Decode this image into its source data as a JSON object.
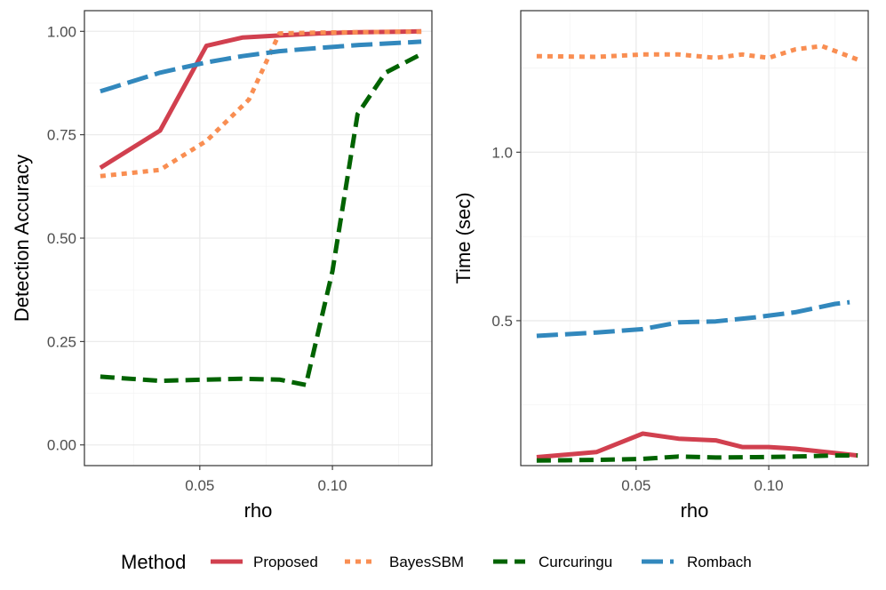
{
  "legend": {
    "title": "Method",
    "entries": [
      {
        "name": "Proposed",
        "color": "#d1404f",
        "dash": "solid"
      },
      {
        "name": "BayesSBM",
        "color": "#f98e52",
        "dash": "dotted"
      },
      {
        "name": "Curcuringu",
        "color": "#006300",
        "dash": "dashed"
      },
      {
        "name": "Rombach",
        "color": "#3288bd",
        "dash": "longdash"
      }
    ]
  },
  "chart_data": [
    {
      "type": "line",
      "xlabel": "rho",
      "ylabel": "Detection Accuracy",
      "xlim": [
        0.0065,
        0.1375
      ],
      "ylim": [
        -0.05,
        1.05
      ],
      "xticks": [
        0.05,
        0.1
      ],
      "xtick_labels": [
        "0.05",
        "0.10"
      ],
      "yticks": [
        0.0,
        0.25,
        0.5,
        0.75,
        1.0
      ],
      "ytick_labels": [
        "0.00",
        "0.25",
        "0.50",
        "0.75",
        "1.00"
      ],
      "series": [
        {
          "name": "Proposed",
          "x": [
            0.0125,
            0.035,
            0.0525,
            0.066,
            0.08,
            0.095,
            0.11,
            0.125,
            0.1335
          ],
          "y": [
            0.67,
            0.76,
            0.965,
            0.985,
            0.99,
            0.995,
            0.998,
            0.999,
            1.0
          ]
        },
        {
          "name": "BayesSBM",
          "x": [
            0.0125,
            0.035,
            0.0525,
            0.0685,
            0.08,
            0.095,
            0.11,
            0.125,
            0.1335
          ],
          "y": [
            0.65,
            0.665,
            0.735,
            0.835,
            0.995,
            0.997,
            0.998,
            0.999,
            0.999
          ]
        },
        {
          "name": "Curcuringu",
          "x": [
            0.0125,
            0.035,
            0.0525,
            0.066,
            0.08,
            0.09,
            0.1,
            0.1095,
            0.12,
            0.1335
          ],
          "y": [
            0.165,
            0.155,
            0.158,
            0.16,
            0.158,
            0.145,
            0.42,
            0.8,
            0.9,
            0.945
          ]
        },
        {
          "name": "Rombach",
          "x": [
            0.0125,
            0.035,
            0.0525,
            0.066,
            0.08,
            0.095,
            0.11,
            0.125,
            0.1335
          ],
          "y": [
            0.855,
            0.9,
            0.925,
            0.94,
            0.952,
            0.96,
            0.967,
            0.972,
            0.975
          ]
        }
      ]
    },
    {
      "type": "line",
      "xlabel": "rho",
      "ylabel": "Time (sec)",
      "xlim": [
        0.0065,
        0.1375
      ],
      "ylim": [
        0.07,
        1.42
      ],
      "xticks": [
        0.05,
        0.1
      ],
      "xtick_labels": [
        "0.05",
        "0.10"
      ],
      "yticks": [
        0.5,
        1.0
      ],
      "ytick_labels": [
        "0.5",
        "1.0"
      ],
      "series": [
        {
          "name": "Proposed",
          "x": [
            0.0125,
            0.035,
            0.0525,
            0.066,
            0.08,
            0.09,
            0.1,
            0.11,
            0.1335
          ],
          "y": [
            0.095,
            0.11,
            0.165,
            0.15,
            0.145,
            0.125,
            0.125,
            0.12,
            0.1
          ]
        },
        {
          "name": "BayesSBM",
          "x": [
            0.0125,
            0.035,
            0.0525,
            0.066,
            0.08,
            0.09,
            0.1,
            0.11,
            0.12,
            0.1335
          ],
          "y": [
            1.285,
            1.283,
            1.29,
            1.29,
            1.28,
            1.29,
            1.28,
            1.305,
            1.315,
            1.275
          ]
        },
        {
          "name": "Curcuringu",
          "x": [
            0.0125,
            0.035,
            0.0525,
            0.066,
            0.08,
            0.095,
            0.11,
            0.125,
            0.1335
          ],
          "y": [
            0.085,
            0.087,
            0.09,
            0.097,
            0.094,
            0.095,
            0.097,
            0.1,
            0.1
          ]
        },
        {
          "name": "Rombach",
          "x": [
            0.0125,
            0.035,
            0.0525,
            0.066,
            0.08,
            0.095,
            0.11,
            0.125,
            0.1305
          ],
          "y": [
            0.455,
            0.465,
            0.475,
            0.495,
            0.498,
            0.51,
            0.525,
            0.55,
            0.555
          ]
        }
      ]
    }
  ]
}
